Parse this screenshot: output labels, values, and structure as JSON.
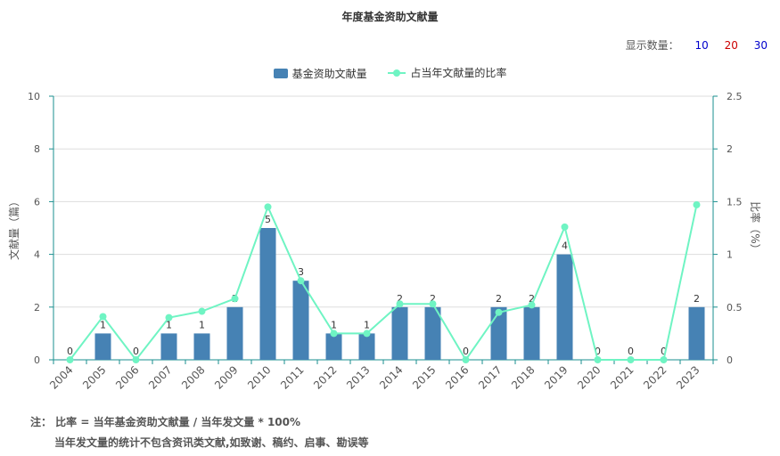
{
  "title": "年度基金资助文献量",
  "display_count": {
    "label": "显示数量：",
    "options": [
      {
        "label": "10",
        "color": "#0000cc"
      },
      {
        "label": "20",
        "color": "#cc0000"
      },
      {
        "label": "30",
        "color": "#0000cc"
      }
    ]
  },
  "notes": {
    "line1": "注： 比率 = 当年基金资助文献量 / 当年发文量 * 100%",
    "line2": "当年发文量的统计不包含资讯类文献,如致谢、稿约、启事、勘误等"
  },
  "colors": {
    "bar": "#4682b4",
    "line": "#6ff4c3",
    "axis": "#1a8f8f",
    "grid": "#dddddd"
  },
  "chart_data": {
    "type": "bar+line",
    "title": "年度基金资助文献量",
    "categories": [
      "2004",
      "2005",
      "2006",
      "2007",
      "2008",
      "2009",
      "2010",
      "2011",
      "2012",
      "2013",
      "2014",
      "2015",
      "2016",
      "2017",
      "2018",
      "2019",
      "2020",
      "2021",
      "2022",
      "2023"
    ],
    "series": [
      {
        "name": "基金资助文献量",
        "type": "bar",
        "axis": "left",
        "values": [
          0,
          1,
          0,
          1,
          1,
          2,
          5,
          3,
          1,
          1,
          2,
          2,
          0,
          2,
          2,
          4,
          0,
          0,
          0,
          2
        ]
      },
      {
        "name": "占当年文献量的比率",
        "type": "line",
        "axis": "right",
        "values": [
          0,
          0.41,
          0,
          0.4,
          0.46,
          0.58,
          1.45,
          0.75,
          0.25,
          0.25,
          0.53,
          0.53,
          0,
          0.45,
          0.52,
          1.26,
          0,
          0,
          0,
          1.47
        ]
      }
    ],
    "ylabel_left": "文献量（篇）",
    "ylabel_right": "比率（%）",
    "ylim_left": [
      0,
      10
    ],
    "ylim_right": [
      0,
      2.5
    ],
    "yticks_left": [
      "0",
      "2",
      "4",
      "6",
      "8",
      "10"
    ],
    "yticks_right": [
      "0",
      "0.5",
      "1",
      "1.5",
      "2",
      "2.5"
    ],
    "grid": true,
    "legend_position": "top-center"
  }
}
